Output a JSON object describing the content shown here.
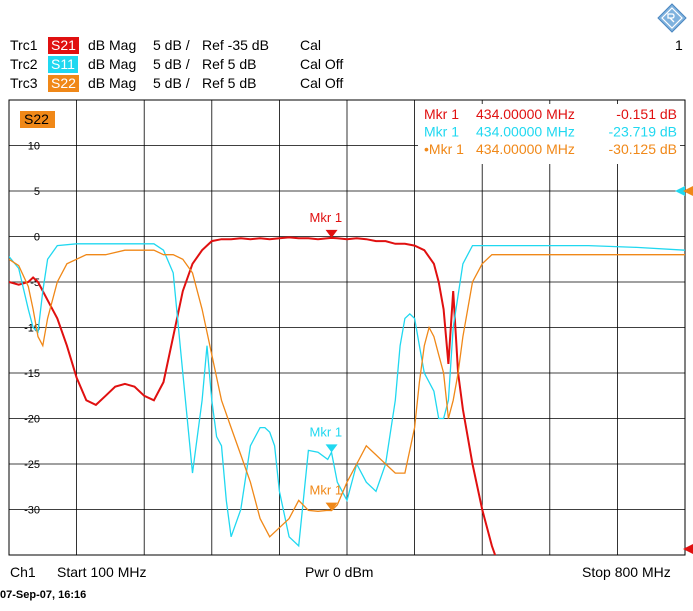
{
  "traces": [
    {
      "id": "Trc1",
      "param": "S21",
      "fmt": "dB Mag",
      "scale": "5 dB /",
      "ref": "Ref -35 dB",
      "cal": "Cal",
      "color": "#e01010"
    },
    {
      "id": "Trc2",
      "param": "S11",
      "fmt": "dB Mag",
      "scale": "5 dB /",
      "ref": "Ref 5 dB",
      "cal": "Cal Off",
      "color": "#20d8f0"
    },
    {
      "id": "Trc3",
      "param": "S22",
      "fmt": "dB Mag",
      "scale": "5 dB /",
      "ref": "Ref 5 dB",
      "cal": "Cal Off",
      "color": "#f08818"
    }
  ],
  "window_number": "1",
  "active_trace_label": "S22",
  "markers": [
    {
      "label": "Mkr 1",
      "freq": "434.00000 MHz",
      "value": "-0.151 dB",
      "color": "#e01010",
      "prefix": ""
    },
    {
      "label": "Mkr 1",
      "freq": "434.00000 MHz",
      "value": "-23.719 dB",
      "color": "#20d8f0",
      "prefix": ""
    },
    {
      "label": "Mkr 1",
      "freq": "434.00000 MHz",
      "value": "-30.125 dB",
      "color": "#f08818",
      "prefix": "•"
    }
  ],
  "plot_marker_labels": [
    "Mkr 1",
    "Mkr 1",
    "Mkr 1"
  ],
  "y_ticks": [
    "10",
    "5",
    "0",
    "-5",
    "-10",
    "-15",
    "-20",
    "-25",
    "-30"
  ],
  "footer": {
    "channel": "Ch1",
    "start": "Start  100 MHz",
    "power": "Pwr  0 dBm",
    "stop": "Stop  800 MHz"
  },
  "timestamp": "07-Sep-07, 16:16",
  "chart_data": {
    "type": "line",
    "x_range_mhz": [
      100,
      800
    ],
    "ylim": [
      -35,
      15
    ],
    "grid": true,
    "series": [
      {
        "name": "S21",
        "color": "#e01010",
        "x": [
          100,
          110,
          120,
          125,
          130,
          140,
          150,
          160,
          170,
          180,
          190,
          200,
          210,
          220,
          230,
          240,
          250,
          260,
          270,
          280,
          290,
          300,
          310,
          320,
          330,
          340,
          350,
          360,
          370,
          380,
          390,
          400,
          410,
          420,
          430,
          434,
          440,
          450,
          460,
          470,
          480,
          490,
          500,
          510,
          520,
          530,
          540,
          545,
          550,
          555,
          560,
          565,
          570,
          580,
          590,
          600,
          610
        ],
        "y": [
          -5,
          -5.3,
          -5,
          -4.5,
          -5,
          -7,
          -9,
          -12,
          -15.5,
          -18,
          -18.5,
          -17.5,
          -16.5,
          -16.2,
          -16.5,
          -17.5,
          -18,
          -16,
          -11,
          -6,
          -3,
          -1.5,
          -0.5,
          -0.3,
          -0.3,
          -0.2,
          -0.3,
          -0.2,
          -0.3,
          -0.2,
          -0.1,
          -0.2,
          -0.2,
          -0.3,
          -0.2,
          -0.151,
          -0.2,
          -0.3,
          -0.2,
          -0.3,
          -0.5,
          -0.5,
          -0.8,
          -0.8,
          -1,
          -1.5,
          -3,
          -5,
          -8,
          -14,
          -6,
          -15,
          -19,
          -25,
          -30,
          -34,
          -37
        ]
      },
      {
        "name": "S11",
        "color": "#20d8f0",
        "x": [
          100,
          110,
          120,
          125,
          130,
          135,
          140,
          150,
          170,
          200,
          230,
          250,
          260,
          270,
          280,
          290,
          300,
          305,
          310,
          315,
          320,
          325,
          330,
          340,
          350,
          360,
          365,
          370,
          375,
          380,
          390,
          400,
          410,
          420,
          430,
          434,
          440,
          450,
          460,
          470,
          480,
          490,
          500,
          505,
          510,
          515,
          520,
          525,
          530,
          540,
          545,
          550,
          555,
          560,
          570,
          580,
          600,
          650,
          700,
          750,
          800
        ],
        "y": [
          -2.2,
          -3.5,
          -8,
          -10,
          -10.5,
          -6,
          -2.5,
          -1,
          -0.8,
          -0.8,
          -0.8,
          -0.8,
          -1.5,
          -4,
          -15,
          -26,
          -18,
          -12,
          -18,
          -22,
          -23,
          -29,
          -33,
          -30,
          -23,
          -21,
          -21,
          -21.5,
          -23,
          -28,
          -33,
          -34,
          -23.5,
          -23.7,
          -24.5,
          -23.719,
          -27,
          -29,
          -25,
          -27,
          -28,
          -25,
          -18,
          -12,
          -9,
          -8.5,
          -9,
          -12,
          -15,
          -17,
          -20,
          -20,
          -18,
          -10,
          -3,
          -1,
          -1,
          -1,
          -1,
          -1.2,
          -1.5
        ]
      },
      {
        "name": "S22",
        "color": "#f08818",
        "x": [
          100,
          110,
          120,
          125,
          130,
          135,
          140,
          150,
          160,
          180,
          200,
          220,
          240,
          250,
          260,
          270,
          280,
          290,
          300,
          310,
          320,
          330,
          340,
          350,
          360,
          370,
          380,
          390,
          400,
          410,
          420,
          430,
          434,
          440,
          450,
          460,
          470,
          480,
          490,
          500,
          510,
          520,
          525,
          530,
          535,
          540,
          545,
          550,
          555,
          560,
          565,
          570,
          575,
          580,
          590,
          600,
          650,
          700,
          750,
          800
        ],
        "y": [
          -2.5,
          -3.2,
          -5.5,
          -8,
          -11,
          -12,
          -9,
          -5,
          -3,
          -2,
          -2,
          -1.5,
          -1.5,
          -1.5,
          -2,
          -2,
          -2.5,
          -4,
          -8,
          -13,
          -18,
          -21,
          -24,
          -27,
          -31,
          -33,
          -32,
          -31,
          -29,
          -30.1,
          -30.2,
          -30.1,
          -30.125,
          -29.5,
          -27,
          -25,
          -23,
          -24,
          -25,
          -26,
          -26,
          -21,
          -16,
          -12,
          -10,
          -11,
          -13,
          -15,
          -20,
          -18,
          -15,
          -11,
          -8,
          -5,
          -3,
          -2,
          -2,
          -2,
          -2,
          -2
        ]
      }
    ]
  }
}
